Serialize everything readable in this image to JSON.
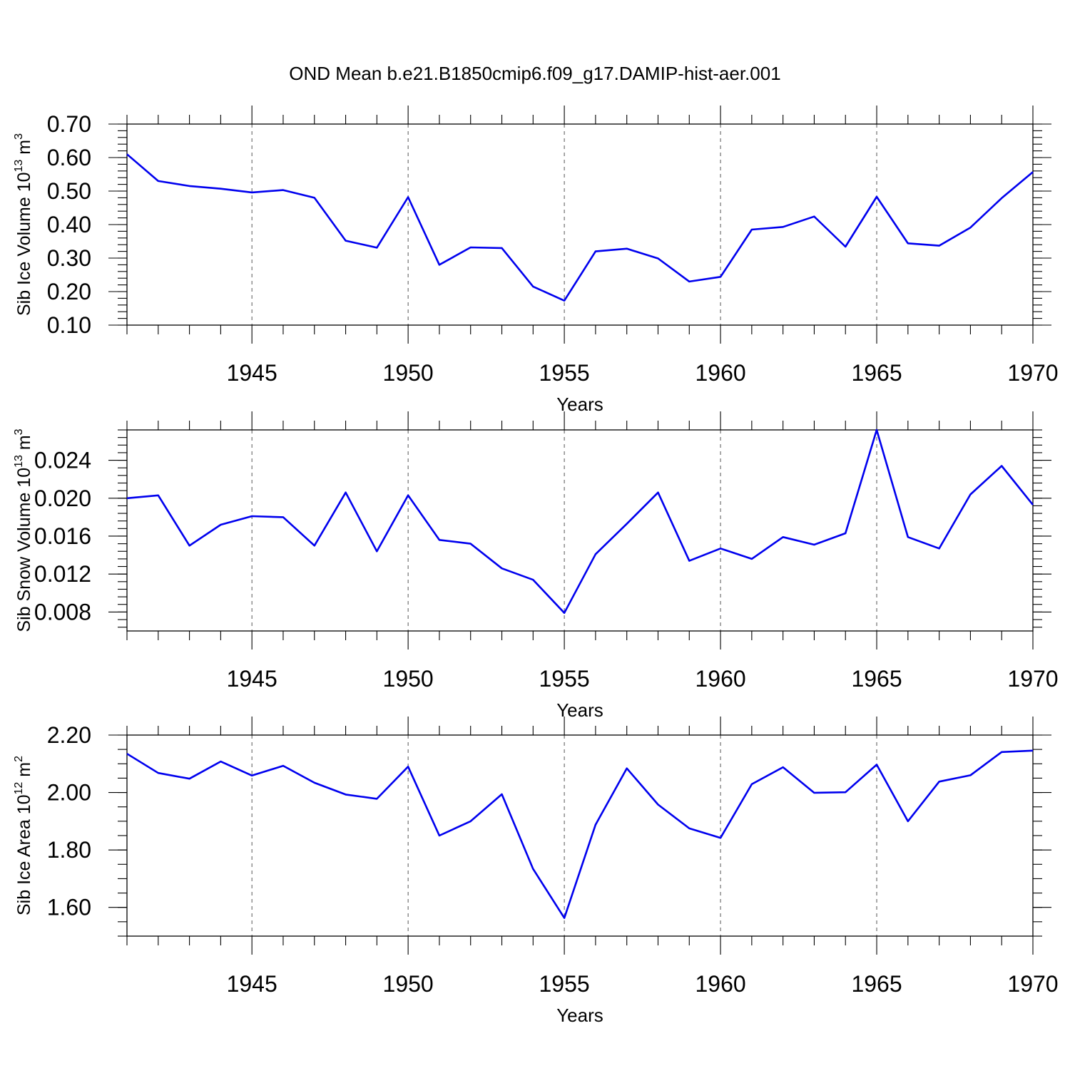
{
  "title": "OND Mean b.e21.B1850cmip6.f09_g17.DAMIP-hist-aer.001",
  "colors": {
    "series": "#0000ee",
    "axis": "#000000",
    "grid": "#555555"
  },
  "chart_data": [
    {
      "type": "line",
      "ylabel": "Sib Ice Volume 10",
      "ylabel_exp": "13",
      "ylabel_unit": " m",
      "ylabel_unit_exp": "3",
      "xlabel": "Years",
      "xlim": [
        1941,
        1970
      ],
      "ylim": [
        0.1,
        0.7
      ],
      "yticks": [
        0.1,
        0.2,
        0.3,
        0.4,
        0.5,
        0.6,
        0.7
      ],
      "ytick_labels": [
        "0.10",
        "0.20",
        "0.30",
        "0.40",
        "0.50",
        "0.60",
        "0.70"
      ],
      "xticks": [
        1945,
        1950,
        1955,
        1960,
        1965,
        1970
      ],
      "xtick_labels": [
        "1945",
        "1950",
        "1955",
        "1960",
        "1965",
        "1970"
      ],
      "grid": "vertical dashed at labeled years",
      "x": [
        1941,
        1942,
        1943,
        1944,
        1945,
        1946,
        1947,
        1948,
        1949,
        1950,
        1951,
        1952,
        1953,
        1954,
        1955,
        1956,
        1957,
        1958,
        1959,
        1960,
        1961,
        1962,
        1963,
        1964,
        1965,
        1966,
        1967,
        1968,
        1969,
        1970
      ],
      "values": [
        0.61,
        0.53,
        0.515,
        0.507,
        0.496,
        0.503,
        0.48,
        0.352,
        0.331,
        0.482,
        0.28,
        0.332,
        0.33,
        0.215,
        0.173,
        0.32,
        0.328,
        0.299,
        0.23,
        0.244,
        0.385,
        0.393,
        0.424,
        0.334,
        0.483,
        0.344,
        0.337,
        0.391,
        0.479,
        0.557
      ]
    },
    {
      "type": "line",
      "ylabel": "Sib Snow Volume 10",
      "ylabel_exp": "13",
      "ylabel_unit": " m",
      "ylabel_unit_exp": "3",
      "xlabel": "Years",
      "xlim": [
        1941,
        1970
      ],
      "ylim": [
        0.006,
        0.0272
      ],
      "yticks": [
        0.008,
        0.012,
        0.016,
        0.02,
        0.024
      ],
      "ytick_labels": [
        "0.008",
        "0.012",
        "0.016",
        "0.020",
        "0.024"
      ],
      "xticks": [
        1945,
        1950,
        1955,
        1960,
        1965,
        1970
      ],
      "xtick_labels": [
        "1945",
        "1950",
        "1955",
        "1960",
        "1965",
        "1970"
      ],
      "grid": "vertical dashed at labeled years",
      "x": [
        1941,
        1942,
        1943,
        1944,
        1945,
        1946,
        1947,
        1948,
        1949,
        1950,
        1951,
        1952,
        1953,
        1954,
        1955,
        1956,
        1957,
        1958,
        1959,
        1960,
        1961,
        1962,
        1963,
        1964,
        1965,
        1966,
        1967,
        1968,
        1969,
        1970
      ],
      "values": [
        0.02,
        0.0203,
        0.015,
        0.0172,
        0.0181,
        0.018,
        0.015,
        0.0206,
        0.0144,
        0.0203,
        0.0156,
        0.0152,
        0.0126,
        0.0114,
        0.0079,
        0.0141,
        0.0173,
        0.0206,
        0.0134,
        0.0147,
        0.0136,
        0.0159,
        0.0151,
        0.0163,
        0.0272,
        0.0159,
        0.0147,
        0.0204,
        0.0234,
        0.0193
      ]
    },
    {
      "type": "line",
      "ylabel": "Sib Ice Area 10",
      "ylabel_exp": "12",
      "ylabel_unit": " m",
      "ylabel_unit_exp": "2",
      "xlabel": "Years",
      "xlim": [
        1941,
        1970
      ],
      "ylim": [
        1.5,
        2.2
      ],
      "yticks": [
        1.6,
        1.8,
        2.0,
        2.2
      ],
      "ytick_labels": [
        "1.60",
        "1.80",
        "2.00",
        "2.20"
      ],
      "xticks": [
        1945,
        1950,
        1955,
        1960,
        1965,
        1970
      ],
      "xtick_labels": [
        "1945",
        "1950",
        "1955",
        "1960",
        "1965",
        "1970"
      ],
      "grid": "vertical dashed at labeled years",
      "x": [
        1941,
        1942,
        1943,
        1944,
        1945,
        1946,
        1947,
        1948,
        1949,
        1950,
        1951,
        1952,
        1953,
        1954,
        1955,
        1956,
        1957,
        1958,
        1959,
        1960,
        1961,
        1962,
        1963,
        1964,
        1965,
        1966,
        1967,
        1968,
        1969,
        1970
      ],
      "values": [
        2.135,
        2.068,
        2.048,
        2.108,
        2.059,
        2.093,
        2.034,
        1.993,
        1.978,
        2.09,
        1.85,
        1.9,
        1.994,
        1.734,
        1.563,
        1.888,
        2.084,
        1.958,
        1.875,
        1.842,
        2.029,
        2.088,
        1.999,
        2.001,
        2.097,
        1.9,
        2.038,
        2.06,
        2.141,
        2.146
      ]
    }
  ]
}
